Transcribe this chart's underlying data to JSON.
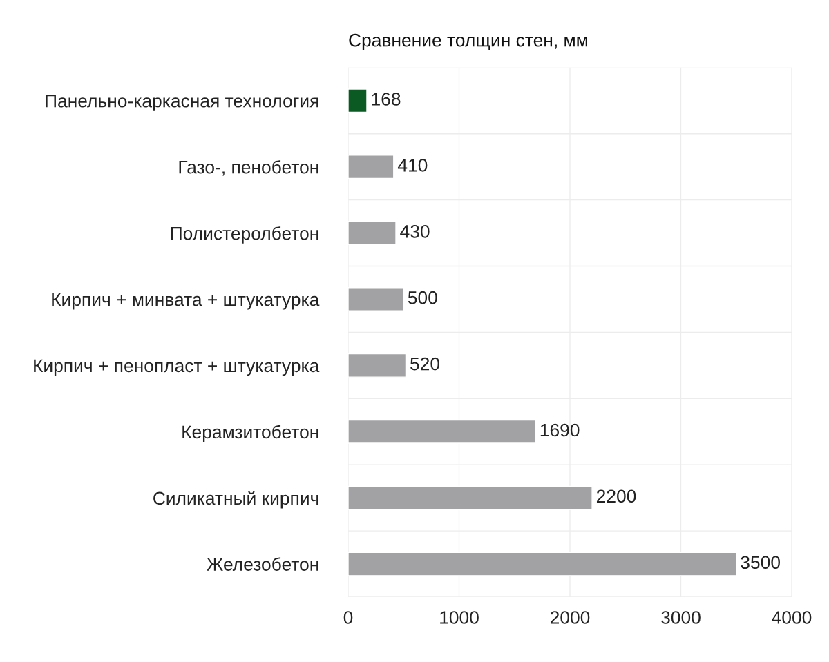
{
  "chart_data": {
    "type": "bar",
    "orientation": "horizontal",
    "title": "Сравнение толщин стен, мм",
    "categories": [
      "Панельно-каркасная технология",
      "Газо-, пенобетон",
      "Полистеролбетон",
      "Кирпич + минвата + штукатурка",
      "Кирпич + пенопласт + штукатурка",
      "Керамзитобетон",
      "Силикатный кирпич",
      "Железобетон"
    ],
    "values": [
      168,
      410,
      430,
      500,
      520,
      1690,
      2200,
      3500
    ],
    "colors": [
      "#0b5a23",
      "#a2a2a5",
      "#a2a2a5",
      "#a2a2a5",
      "#a2a2a5",
      "#a2a2a5",
      "#a2a2a5",
      "#a2a2a5"
    ],
    "xlim": [
      0,
      4000
    ],
    "xticks": [
      0,
      1000,
      2000,
      3000,
      4000
    ],
    "grid": true,
    "data_labels": true
  }
}
